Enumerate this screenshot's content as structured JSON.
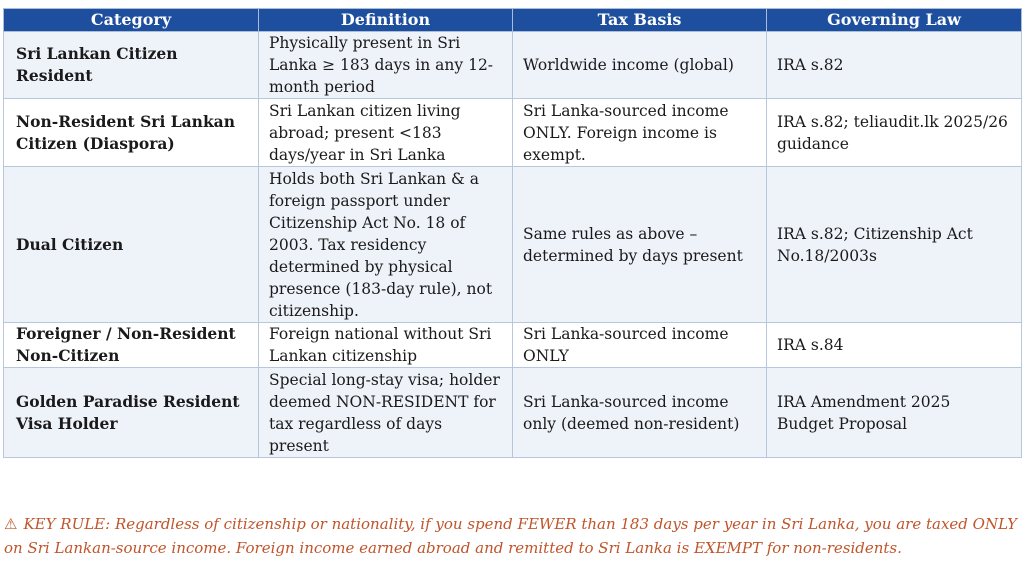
{
  "table": {
    "headers": [
      "Category",
      "Definition",
      "Tax Basis",
      "Governing Law"
    ],
    "rows": [
      {
        "category": "Sri Lankan Citizen Resident",
        "definition": "Physically present in Sri Lanka ≥ 183 days in any 12-month period",
        "tax_basis": "Worldwide income (global)",
        "governing_law": "IRA s.82"
      },
      {
        "category": "Non-Resident Sri Lankan Citizen (Diaspora)",
        "definition": "Sri Lankan citizen living abroad; present <183 days/year in Sri Lanka",
        "tax_basis": "Sri Lanka-sourced income ONLY. Foreign income is exempt.",
        "governing_law": "IRA s.82; teliaudit.lk 2025/26 guidance"
      },
      {
        "category": "Dual Citizen",
        "definition": "Holds both Sri Lankan & a foreign passport under Citizenship Act No. 18 of 2003. Tax residency determined by physical presence (183-day rule), not citizenship.",
        "tax_basis": "Same rules as above – determined by days present",
        "governing_law": "IRA s.82; Citizenship Act No.18/2003s"
      },
      {
        "category": "Foreigner / Non-Resident Non-Citizen",
        "definition": "Foreign national without Sri Lankan citizenship",
        "tax_basis": "Sri Lanka-sourced income ONLY",
        "governing_law": "IRA s.84"
      },
      {
        "category": "Golden Paradise Resident Visa Holder",
        "definition": "Special long-stay visa; holder deemed NON-RESIDENT for tax regardless of days present",
        "tax_basis": "Sri Lanka-sourced income only (deemed non-resident)",
        "governing_law": "IRA Amendment 2025 Budget Proposal"
      }
    ]
  },
  "key_rule": {
    "icon": "warning-icon",
    "text": "KEY RULE: Regardless of citizenship or nationality, if you spend FEWER than 183 days per year in Sri Lanka, you are taxed ONLY on Sri Lankan-source income. Foreign income earned abroad and remitted to Sri Lanka is EXEMPT for non-residents."
  },
  "colors": {
    "header_bg": "#1e4f9e",
    "alt_row_bg": "#eef2f9",
    "key_rule_text": "#c0552b"
  }
}
